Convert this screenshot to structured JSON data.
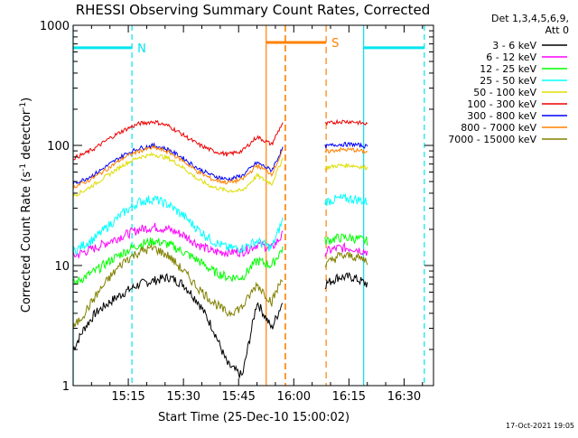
{
  "chart_data": {
    "type": "line",
    "title": "RHESSI Observing Summary Count Rates, Corrected",
    "xlabel": "Start Time (25-Dec-10 15:00:02)",
    "ylabel_main": "Corrected Count Rate (s",
    "ylabel_sup1": "-1",
    "ylabel_mid": " detector",
    "ylabel_sup2": "-1",
    "ylabel_end": ")",
    "yscale": "log",
    "ylim": [
      1,
      1000
    ],
    "xlim_minutes": [
      0,
      98
    ],
    "x_ticks": [
      {
        "minute": 15,
        "label": "15:15"
      },
      {
        "minute": 30,
        "label": "15:30"
      },
      {
        "minute": 45,
        "label": "15:45"
      },
      {
        "minute": 60,
        "label": "16:00"
      },
      {
        "minute": 75,
        "label": "16:15"
      },
      {
        "minute": 90,
        "label": "16:30"
      }
    ],
    "y_ticks": [
      {
        "value": 1,
        "label": "1"
      },
      {
        "value": 10,
        "label": "10"
      },
      {
        "value": 100,
        "label": "100"
      },
      {
        "value": 1000,
        "label": "1000"
      }
    ],
    "legend": {
      "header1": "Det 1,3,4,5,6,9,",
      "header2": "Att 0",
      "entries": [
        {
          "label": "3 - 6 keV",
          "color": "#000000"
        },
        {
          "label": "6 - 12 keV",
          "color": "#ff00ff"
        },
        {
          "label": "12 - 25 keV",
          "color": "#00ff00"
        },
        {
          "label": "25 - 50 keV",
          "color": "#00ffff"
        },
        {
          "label": "50 - 100 keV",
          "color": "#dddd00"
        },
        {
          "label": "100 - 300 keV",
          "color": "#ee0000"
        },
        {
          "label": "300 - 800 keV",
          "color": "#0000ff"
        },
        {
          "label": "800 - 7000 keV",
          "color": "#ff8000"
        },
        {
          "label": "7000 - 15000 keV",
          "color": "#808000"
        }
      ]
    },
    "segments": [
      [
        0,
        57
      ],
      [
        68.5,
        81
      ]
    ],
    "series": [
      {
        "name": "3 - 6 keV",
        "color": "#000000",
        "values": [
          [
            0,
            2
          ],
          [
            3,
            3
          ],
          [
            6,
            4
          ],
          [
            10,
            5
          ],
          [
            14,
            6
          ],
          [
            18,
            7
          ],
          [
            22,
            7.5
          ],
          [
            26,
            8
          ],
          [
            30,
            7
          ],
          [
            34,
            5
          ],
          [
            38,
            3
          ],
          [
            42,
            1.5
          ],
          [
            46,
            1.2
          ],
          [
            50,
            5
          ],
          [
            54,
            3
          ],
          [
            57,
            5
          ],
          [
            68.5,
            7
          ],
          [
            72,
            8
          ],
          [
            76,
            8
          ],
          [
            80,
            7
          ]
        ]
      },
      {
        "name": "6 - 12 keV",
        "color": "#ff00ff",
        "values": [
          [
            0,
            12
          ],
          [
            3,
            13
          ],
          [
            6,
            14
          ],
          [
            10,
            16
          ],
          [
            14,
            18
          ],
          [
            18,
            20
          ],
          [
            22,
            21
          ],
          [
            26,
            20
          ],
          [
            30,
            18
          ],
          [
            34,
            15
          ],
          [
            38,
            13
          ],
          [
            42,
            13
          ],
          [
            46,
            13
          ],
          [
            50,
            15
          ],
          [
            54,
            14
          ],
          [
            57,
            18
          ],
          [
            68.5,
            13
          ],
          [
            72,
            14
          ],
          [
            76,
            14
          ],
          [
            80,
            13
          ]
        ]
      },
      {
        "name": "12 - 25 keV",
        "color": "#00ff00",
        "values": [
          [
            0,
            7
          ],
          [
            3,
            8
          ],
          [
            6,
            9
          ],
          [
            10,
            11
          ],
          [
            14,
            13
          ],
          [
            18,
            15
          ],
          [
            22,
            16
          ],
          [
            26,
            15
          ],
          [
            30,
            13
          ],
          [
            34,
            11
          ],
          [
            38,
            9
          ],
          [
            42,
            8
          ],
          [
            46,
            8
          ],
          [
            50,
            11
          ],
          [
            54,
            10
          ],
          [
            57,
            14
          ],
          [
            68.5,
            16
          ],
          [
            72,
            17
          ],
          [
            76,
            17
          ],
          [
            80,
            16
          ]
        ]
      },
      {
        "name": "25 - 50 keV",
        "color": "#00ffff",
        "values": [
          [
            0,
            13
          ],
          [
            3,
            15
          ],
          [
            6,
            17
          ],
          [
            10,
            22
          ],
          [
            14,
            28
          ],
          [
            18,
            34
          ],
          [
            22,
            36
          ],
          [
            26,
            32
          ],
          [
            30,
            26
          ],
          [
            34,
            20
          ],
          [
            38,
            16
          ],
          [
            42,
            14
          ],
          [
            46,
            14
          ],
          [
            50,
            16
          ],
          [
            54,
            14
          ],
          [
            57,
            24
          ],
          [
            68.5,
            34
          ],
          [
            72,
            36
          ],
          [
            76,
            36
          ],
          [
            80,
            34
          ]
        ]
      },
      {
        "name": "50 - 100 keV",
        "color": "#dddd00",
        "values": [
          [
            0,
            38
          ],
          [
            3,
            42
          ],
          [
            6,
            48
          ],
          [
            10,
            58
          ],
          [
            14,
            70
          ],
          [
            18,
            80
          ],
          [
            22,
            84
          ],
          [
            26,
            78
          ],
          [
            30,
            65
          ],
          [
            34,
            52
          ],
          [
            38,
            45
          ],
          [
            42,
            42
          ],
          [
            46,
            42
          ],
          [
            50,
            56
          ],
          [
            54,
            48
          ],
          [
            57,
            78
          ],
          [
            68.5,
            65
          ],
          [
            72,
            68
          ],
          [
            76,
            68
          ],
          [
            80,
            65
          ]
        ]
      },
      {
        "name": "100 - 300 keV",
        "color": "#ee0000",
        "values": [
          [
            0,
            78
          ],
          [
            3,
            85
          ],
          [
            6,
            95
          ],
          [
            10,
            115
          ],
          [
            14,
            135
          ],
          [
            18,
            152
          ],
          [
            22,
            158
          ],
          [
            26,
            145
          ],
          [
            30,
            122
          ],
          [
            34,
            102
          ],
          [
            38,
            90
          ],
          [
            42,
            84
          ],
          [
            46,
            90
          ],
          [
            50,
            118
          ],
          [
            54,
            102
          ],
          [
            57,
            155
          ],
          [
            68.5,
            150
          ],
          [
            72,
            158
          ],
          [
            76,
            158
          ],
          [
            80,
            150
          ]
        ]
      },
      {
        "name": "300 - 800 keV",
        "color": "#0000ff",
        "values": [
          [
            0,
            48
          ],
          [
            3,
            52
          ],
          [
            6,
            58
          ],
          [
            10,
            70
          ],
          [
            14,
            84
          ],
          [
            18,
            95
          ],
          [
            22,
            100
          ],
          [
            26,
            92
          ],
          [
            30,
            78
          ],
          [
            34,
            64
          ],
          [
            38,
            56
          ],
          [
            42,
            52
          ],
          [
            46,
            56
          ],
          [
            50,
            72
          ],
          [
            54,
            62
          ],
          [
            57,
            95
          ],
          [
            68.5,
            98
          ],
          [
            72,
            102
          ],
          [
            76,
            102
          ],
          [
            80,
            98
          ]
        ]
      },
      {
        "name": "800 - 7000 keV",
        "color": "#ff8000",
        "values": [
          [
            0,
            45
          ],
          [
            3,
            49
          ],
          [
            6,
            55
          ],
          [
            10,
            66
          ],
          [
            14,
            80
          ],
          [
            18,
            90
          ],
          [
            22,
            96
          ],
          [
            26,
            88
          ],
          [
            30,
            74
          ],
          [
            34,
            60
          ],
          [
            38,
            52
          ],
          [
            42,
            49
          ],
          [
            46,
            52
          ],
          [
            50,
            68
          ],
          [
            54,
            58
          ],
          [
            57,
            90
          ],
          [
            68.5,
            88
          ],
          [
            72,
            92
          ],
          [
            76,
            92
          ],
          [
            80,
            88
          ]
        ]
      },
      {
        "name": "7000 - 15000 keV",
        "color": "#808000",
        "values": [
          [
            0,
            3
          ],
          [
            3,
            4
          ],
          [
            6,
            5.5
          ],
          [
            10,
            8
          ],
          [
            14,
            11
          ],
          [
            18,
            13
          ],
          [
            22,
            14
          ],
          [
            26,
            12
          ],
          [
            30,
            9
          ],
          [
            34,
            6.5
          ],
          [
            38,
            5
          ],
          [
            42,
            4
          ],
          [
            46,
            4.5
          ],
          [
            50,
            7
          ],
          [
            54,
            5
          ],
          [
            57,
            8
          ],
          [
            68.5,
            10
          ],
          [
            72,
            12
          ],
          [
            76,
            12
          ],
          [
            80,
            11
          ]
        ]
      }
    ],
    "annotations": [
      {
        "label": "N",
        "color": "#00e5ee",
        "kind": "night",
        "x_start": 0,
        "x_end": 16,
        "bar_value": 650
      },
      {
        "label": "",
        "color": "#00e5ee",
        "kind": "night",
        "x_start": 79,
        "x_end": 95.5,
        "bar_value": 650
      },
      {
        "label": "S",
        "color": "#ff8000",
        "kind": "saa",
        "x_start": 52.5,
        "x_end": 68.8,
        "bar_value": 720
      }
    ],
    "extra_vlines": [
      {
        "x": 57.7,
        "color": "#ff8000",
        "style": "dashed"
      }
    ],
    "timestamp": "17-Oct-2021 19:05"
  }
}
